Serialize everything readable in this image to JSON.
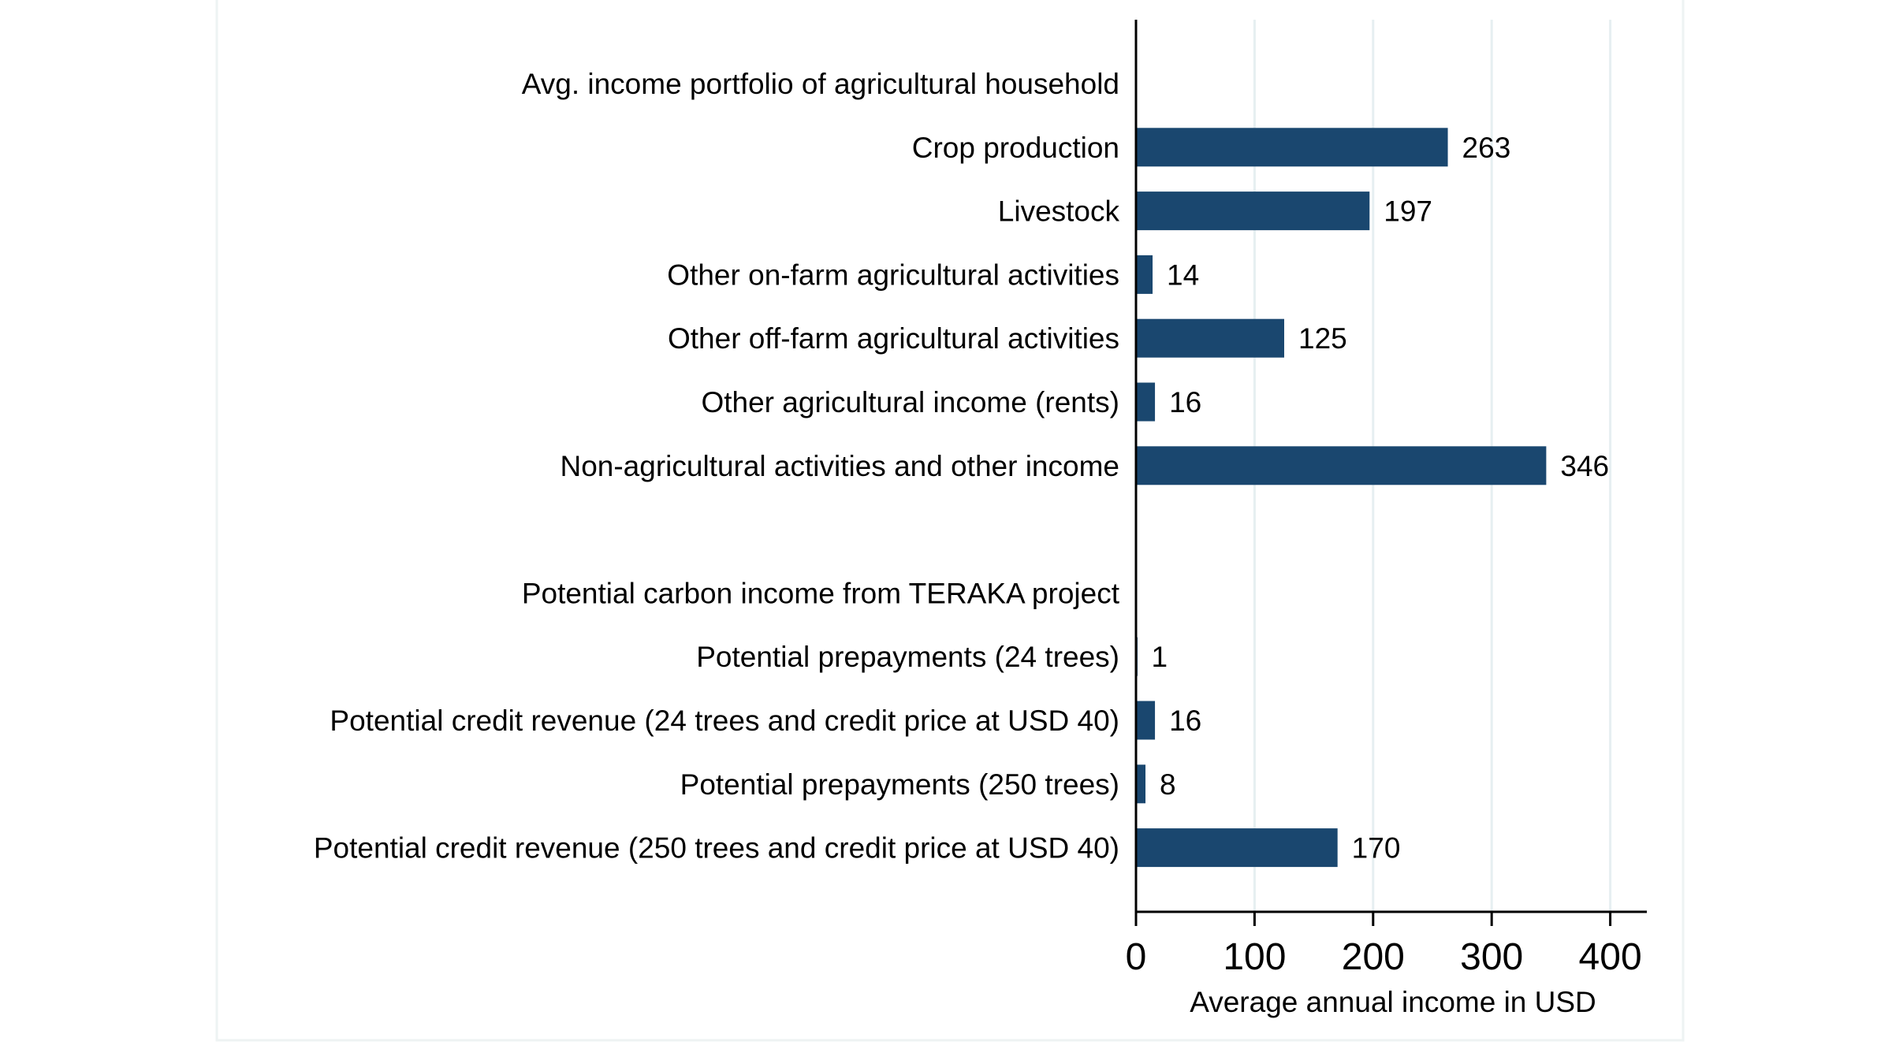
{
  "chart_data": {
    "type": "bar",
    "orientation": "horizontal",
    "rows": [
      {
        "label": "Avg. income portfolio of agricultural household",
        "value": null,
        "header": true
      },
      {
        "label": "Crop production",
        "value": 263
      },
      {
        "label": "Livestock",
        "value": 197
      },
      {
        "label": "Other on-farm agricultural activities",
        "value": 14
      },
      {
        "label": "Other off-farm agricultural activities",
        "value": 125
      },
      {
        "label": "Other agricultural income (rents)",
        "value": 16
      },
      {
        "label": "Non-agricultural activities and other income",
        "value": 346
      },
      {
        "label": "",
        "value": null,
        "spacer": true
      },
      {
        "label": "Potential carbon income from TERAKA project",
        "value": null,
        "header": true
      },
      {
        "label": "Potential prepayments (24 trees)",
        "value": 1
      },
      {
        "label": "Potential credit revenue (24 trees and credit price at USD 40)",
        "value": 16
      },
      {
        "label": "Potential prepayments (250 trees)",
        "value": 8
      },
      {
        "label": "Potential credit revenue (250 trees and credit price at USD 40)",
        "value": 170
      }
    ],
    "xlabel": "Average annual income in USD",
    "xticks": [
      0,
      100,
      200,
      300,
      400
    ],
    "xlim": [
      0,
      430
    ],
    "grid": "vertical",
    "colors": {
      "bar": "#1a476f",
      "grid": "#e6eff1",
      "frame": "#eef3f3"
    }
  }
}
